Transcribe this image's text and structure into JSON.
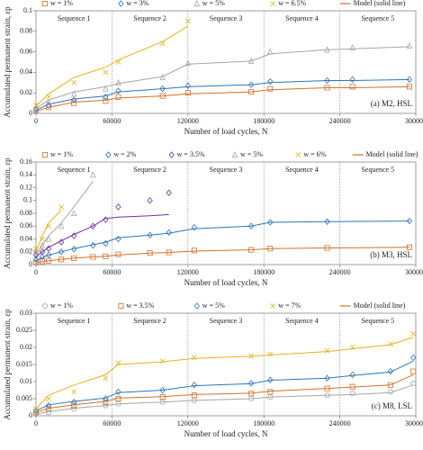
{
  "chart_data": [
    {
      "type": "line",
      "annotation": "(a) M2, HSL",
      "y_title": "Accumulated permanent strain, εp",
      "x_title": "Number of load cycles, N",
      "xlim": [
        0,
        300000
      ],
      "xticks": [
        0,
        60000,
        120000,
        180000,
        240000,
        300000
      ],
      "ylim": [
        0,
        0.1
      ],
      "yticks": [
        0,
        0.02,
        0.04,
        0.06,
        0.08,
        0.1
      ],
      "grid": false,
      "sequences": [
        "Sequence 1",
        "Sequence 2",
        "Sequence 3",
        "Sequence 4",
        "Sequence 5"
      ],
      "sequence_bounds": [
        60000,
        120000,
        180000,
        240000
      ],
      "model_legend": "Model (solid line)",
      "model_color": "#d0702a",
      "x": [
        0,
        10000,
        30000,
        55000,
        65000,
        100000,
        120000,
        170000,
        185000,
        230000,
        250000,
        295000
      ],
      "series": [
        {
          "name": "w = 1%",
          "color": "#d0702a",
          "marker": "square",
          "values": [
            0.003,
            0.006,
            0.01,
            0.012,
            0.016,
            0.017,
            0.02,
            0.021,
            0.024,
            0.025,
            0.026,
            0.026
          ],
          "model": [
            0.002,
            0.006,
            0.011,
            0.013,
            0.015,
            0.017,
            0.019,
            0.021,
            0.023,
            0.025,
            0.025,
            0.026
          ]
        },
        {
          "name": "w = 3%",
          "color": "#2e75b6",
          "marker": "diamond",
          "values": [
            0.004,
            0.008,
            0.013,
            0.016,
            0.022,
            0.024,
            0.027,
            0.028,
            0.031,
            0.032,
            0.033,
            0.033
          ],
          "model": [
            0.003,
            0.009,
            0.014,
            0.017,
            0.021,
            0.024,
            0.026,
            0.028,
            0.03,
            0.032,
            0.032,
            0.033
          ]
        },
        {
          "name": "w = 5%",
          "color": "#a6a6a6",
          "marker": "triangle",
          "values": [
            0.006,
            0.011,
            0.019,
            0.024,
            0.03,
            0.035,
            0.049,
            0.051,
            0.06,
            0.062,
            0.064,
            0.066
          ],
          "model": [
            0.005,
            0.013,
            0.021,
            0.026,
            0.029,
            0.036,
            0.048,
            0.051,
            0.058,
            0.062,
            0.063,
            0.065
          ]
        },
        {
          "name": "w = 6.5%",
          "color": "#e6b219",
          "marker": "x",
          "values": [
            0.008,
            0.016,
            0.03,
            0.04,
            0.05,
            0.068,
            0.09,
            null,
            null,
            null,
            null,
            null
          ],
          "model": [
            0.007,
            0.019,
            0.035,
            0.045,
            0.052,
            0.07,
            0.085,
            null,
            null,
            null,
            null,
            null
          ]
        }
      ]
    },
    {
      "type": "line",
      "annotation": "(b) M3, HSL",
      "y_title": "Accumulated permanent strain, εp",
      "x_title": "Number of load cycles, N",
      "xlim": [
        0,
        300000
      ],
      "xticks": [
        0,
        60000,
        120000,
        180000,
        240000,
        300000
      ],
      "ylim": [
        0,
        0.16
      ],
      "yticks": [
        0,
        0.02,
        0.04,
        0.06,
        0.08,
        0.1,
        0.12,
        0.14,
        0.16
      ],
      "grid": false,
      "sequences": [
        "Sequence 1",
        "Sequence 2",
        "Sequence 3",
        "Sequence 4",
        "Sequence 5"
      ],
      "sequence_bounds": [
        60000,
        120000,
        180000,
        240000
      ],
      "model_legend": "Model (solid line)",
      "model_color": "#d0702a",
      "x": [
        0,
        5000,
        10000,
        20000,
        30000,
        45000,
        55000,
        65000,
        90000,
        105000,
        125000,
        170000,
        185000,
        230000,
        295000
      ],
      "series": [
        {
          "name": "w = 1%",
          "color": "#d0702a",
          "marker": "square",
          "values": [
            0.003,
            0.005,
            0.006,
            0.008,
            0.01,
            0.012,
            0.013,
            0.016,
            0.018,
            0.019,
            0.022,
            0.023,
            0.025,
            0.026,
            0.027
          ],
          "model": [
            0.002,
            0.005,
            0.006,
            0.008,
            0.01,
            0.012,
            0.013,
            0.015,
            0.018,
            0.019,
            0.021,
            0.023,
            0.025,
            0.026,
            0.027
          ]
        },
        {
          "name": "w = 2%",
          "color": "#2e75b6",
          "marker": "diamond",
          "values": [
            0.008,
            0.012,
            0.015,
            0.02,
            0.024,
            0.03,
            0.033,
            0.04,
            0.046,
            0.05,
            0.058,
            0.06,
            0.066,
            0.067,
            0.068
          ],
          "model": [
            0.006,
            0.011,
            0.015,
            0.02,
            0.025,
            0.031,
            0.035,
            0.042,
            0.046,
            0.049,
            0.056,
            0.06,
            0.066,
            0.067,
            0.068
          ]
        },
        {
          "name": "w = 3.5%",
          "color": "#7030a0",
          "marker": "diamond",
          "values": [
            0.015,
            0.02,
            0.025,
            0.035,
            0.045,
            0.06,
            0.07,
            0.09,
            0.1,
            0.112,
            null,
            null,
            null,
            null,
            null
          ],
          "model": [
            0.012,
            0.02,
            0.027,
            0.037,
            0.047,
            0.06,
            0.072,
            0.074,
            0.076,
            0.078,
            null,
            null,
            null,
            null,
            null
          ]
        },
        {
          "name": "w = 5%",
          "color": "#a6a6a6",
          "marker": "triangle",
          "values": [
            0.02,
            0.03,
            0.04,
            0.06,
            0.08,
            0.14,
            null,
            null,
            null,
            null,
            null,
            null,
            null,
            null,
            null
          ],
          "model": [
            0.015,
            0.03,
            0.045,
            0.065,
            0.09,
            0.13,
            null,
            null,
            null,
            null,
            null,
            null,
            null,
            null,
            null
          ]
        },
        {
          "name": "w = 6%",
          "color": "#e6b219",
          "marker": "x",
          "values": [
            0.025,
            0.04,
            0.06,
            0.09,
            null,
            null,
            null,
            null,
            null,
            null,
            null,
            null,
            null,
            null,
            null
          ],
          "model": [
            0.02,
            0.045,
            0.065,
            0.085,
            null,
            null,
            null,
            null,
            null,
            null,
            null,
            null,
            null,
            null,
            null
          ]
        }
      ]
    },
    {
      "type": "line",
      "annotation": "(c) M8, LSL",
      "y_title": "Accumulated permanent strain, εp",
      "x_title": "Number of load cycles, N",
      "xlim": [
        0,
        300000
      ],
      "xticks": [
        0,
        60000,
        120000,
        180000,
        240000,
        300000
      ],
      "ylim": [
        0,
        0.03
      ],
      "yticks": [
        0,
        0.005,
        0.01,
        0.015,
        0.02,
        0.025,
        0.03
      ],
      "grid": false,
      "sequences": [
        "Sequence 1",
        "Sequence 2",
        "Sequence 3",
        "Sequence 4",
        "Sequence 5"
      ],
      "sequence_bounds": [
        60000,
        120000,
        180000,
        240000
      ],
      "model_legend": "Model (solid line)",
      "model_color": "#d0702a",
      "x": [
        0,
        10000,
        30000,
        55000,
        65000,
        100000,
        125000,
        170000,
        185000,
        230000,
        250000,
        280000,
        298000
      ],
      "series": [
        {
          "name": "w = 1%",
          "color": "#a6a6a6",
          "marker": "circle",
          "values": [
            0.0005,
            0.001,
            0.002,
            0.003,
            0.0035,
            0.004,
            0.0045,
            0.005,
            0.0055,
            0.006,
            0.0065,
            0.007,
            0.0095
          ],
          "model": [
            0.0005,
            0.0012,
            0.0022,
            0.003,
            0.0035,
            0.004,
            0.0045,
            0.005,
            0.0055,
            0.006,
            0.0062,
            0.0068,
            0.009
          ]
        },
        {
          "name": "w = 3.5%",
          "color": "#d0702a",
          "marker": "square",
          "values": [
            0.001,
            0.002,
            0.003,
            0.004,
            0.005,
            0.0055,
            0.006,
            0.0065,
            0.007,
            0.008,
            0.0085,
            0.009,
            0.013
          ],
          "model": [
            0.001,
            0.0022,
            0.0032,
            0.0042,
            0.0052,
            0.0056,
            0.0062,
            0.0066,
            0.0072,
            0.008,
            0.0084,
            0.009,
            0.012
          ]
        },
        {
          "name": "w = 5%",
          "color": "#2e75b6",
          "marker": "diamond",
          "values": [
            0.0015,
            0.003,
            0.004,
            0.005,
            0.007,
            0.0075,
            0.009,
            0.0095,
            0.0105,
            0.011,
            0.012,
            0.013,
            0.017
          ],
          "model": [
            0.0015,
            0.0032,
            0.0042,
            0.0052,
            0.0068,
            0.0075,
            0.0088,
            0.0094,
            0.0104,
            0.011,
            0.0118,
            0.0128,
            0.016
          ]
        },
        {
          "name": "w = 7%",
          "color": "#e6b219",
          "marker": "x",
          "values": [
            0.002,
            0.005,
            0.007,
            0.011,
            0.0155,
            0.016,
            0.017,
            0.0175,
            0.018,
            0.019,
            0.02,
            0.021,
            0.024
          ],
          "model": [
            0.002,
            0.006,
            0.009,
            0.012,
            0.015,
            0.0158,
            0.0168,
            0.0174,
            0.0178,
            0.0188,
            0.0196,
            0.0208,
            0.023
          ]
        }
      ]
    }
  ]
}
